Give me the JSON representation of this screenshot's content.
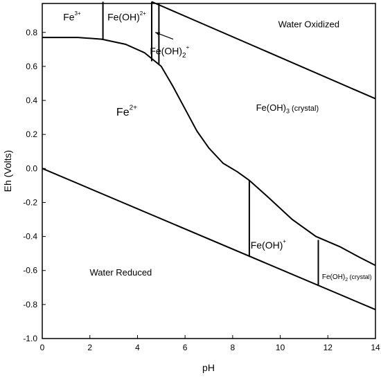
{
  "chart_data": {
    "type": "line",
    "title": "",
    "xlabel": "pH",
    "ylabel": "Eh (Volts)",
    "xlim": [
      0,
      14
    ],
    "ylim": [
      -1.0,
      0.97
    ],
    "x_ticks": [
      0,
      2,
      4,
      6,
      8,
      10,
      12,
      14
    ],
    "y_ticks": [
      -1.0,
      -0.8,
      -0.6,
      -0.4,
      -0.2,
      0.0,
      0.2,
      0.4,
      0.6,
      0.8
    ],
    "x_tick_labels": [
      "0",
      "2",
      "4",
      "6",
      "8",
      "10",
      "12",
      "14"
    ],
    "y_tick_labels": [
      "-1.0",
      "-0.8",
      "-0.6",
      "-0.4",
      "-0.2",
      "0.0",
      "0.2",
      "0.4",
      "0.6",
      "0.8"
    ],
    "grid": false,
    "series": [
      {
        "values": [
          [
            0,
            0.0
          ],
          [
            14,
            -0.83
          ]
        ]
      },
      {
        "values": [
          [
            4.6,
            0.98
          ],
          [
            14,
            0.41
          ]
        ]
      },
      {
        "values": [
          [
            0,
            0.77
          ],
          [
            1.5,
            0.77
          ],
          [
            2.5,
            0.76
          ],
          [
            3.5,
            0.73
          ],
          [
            4.3,
            0.68
          ],
          [
            5.0,
            0.6
          ],
          [
            5.5,
            0.48
          ],
          [
            6.0,
            0.35
          ],
          [
            6.5,
            0.22
          ],
          [
            7.0,
            0.12
          ],
          [
            7.6,
            0.03
          ],
          [
            8.2,
            -0.02
          ],
          [
            8.7,
            -0.07
          ],
          [
            9.5,
            -0.17
          ],
          [
            10.5,
            -0.3
          ],
          [
            11.5,
            -0.4
          ],
          [
            12.5,
            -0.46
          ],
          [
            13.3,
            -0.52
          ],
          [
            14,
            -0.57
          ]
        ]
      },
      {
        "values": [
          [
            2.55,
            0.98
          ],
          [
            2.55,
            0.755
          ]
        ]
      },
      {
        "values": [
          [
            4.6,
            0.98
          ],
          [
            4.6,
            0.63
          ]
        ]
      },
      {
        "values": [
          [
            4.9,
            0.97
          ],
          [
            4.9,
            0.61
          ]
        ]
      },
      {
        "values": [
          [
            8.7,
            -0.07
          ],
          [
            8.7,
            -0.52
          ]
        ]
      },
      {
        "values": [
          [
            11.6,
            -0.42
          ],
          [
            11.6,
            -0.69
          ]
        ]
      }
    ],
    "region_labels": [
      {
        "text": "Fe",
        "sup": "3+",
        "x": 1.25,
        "y": 0.87,
        "size": 14
      },
      {
        "text": "Fe(OH)",
        "sup": "2+",
        "x": 3.55,
        "y": 0.87,
        "size": 14
      },
      {
        "text": "Water Oxidized",
        "sup": "",
        "x": 11.2,
        "y": 0.83,
        "size": 13
      },
      {
        "text": "Fe(OH)",
        "sup": "+",
        "sub": "2",
        "x": 5.35,
        "y": 0.67,
        "size": 14
      },
      {
        "text": "Fe",
        "sup": "2+",
        "x": 3.55,
        "y": 0.31,
        "size": 16
      },
      {
        "text": "Fe(OH)",
        "sub": "3",
        "tail": " (crystal)",
        "x": 10.3,
        "y": 0.34,
        "size": 13
      },
      {
        "text": "Fe(OH)",
        "sup": "+",
        "x": 9.5,
        "y": -0.47,
        "size": 14
      },
      {
        "text": "Water Reduced",
        "sup": "",
        "x": 3.3,
        "y": -0.63,
        "size": 13
      },
      {
        "text": "Fe(OH)",
        "sub": "2",
        "tail": " (crystal)",
        "x": 12.8,
        "y": -0.65,
        "size": 10
      }
    ],
    "arrow": {
      "from": [
        5.5,
        0.76
      ],
      "to": [
        4.75,
        0.8
      ]
    }
  }
}
